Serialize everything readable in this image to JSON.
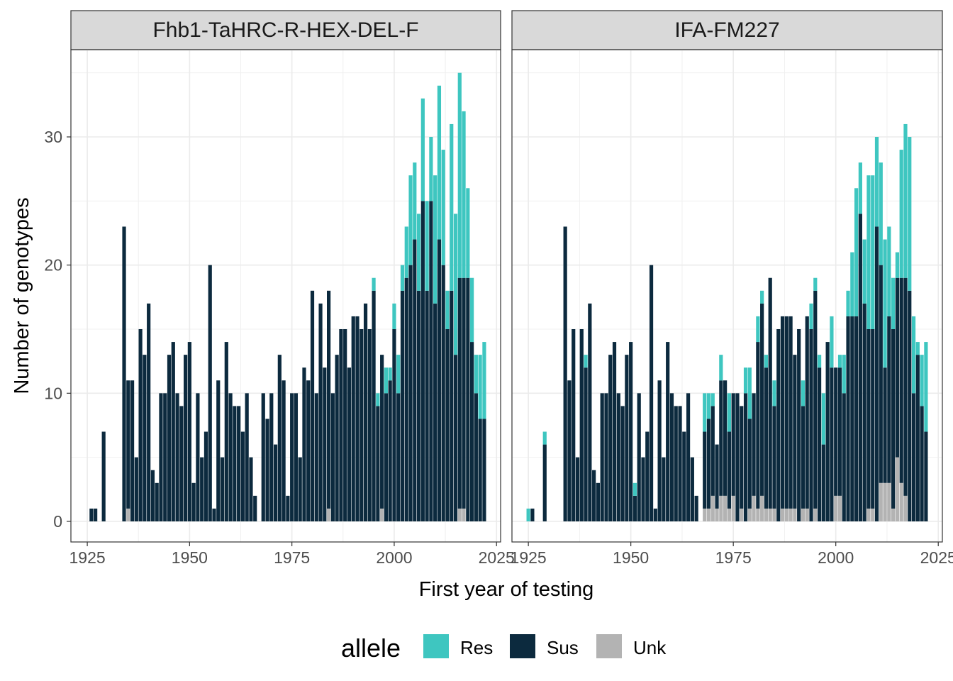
{
  "chart_data": {
    "type": "bar",
    "stacked": true,
    "xlabel": "First year of testing",
    "ylabel": "Number of genotypes",
    "xlim": [
      1921,
      2026
    ],
    "ylim": [
      0,
      36
    ],
    "x_ticks": [
      1925,
      1950,
      1975,
      2000,
      2025
    ],
    "y_ticks": [
      0,
      10,
      20,
      30
    ],
    "grid": true,
    "legend": {
      "title": "allele",
      "position": "bottom",
      "entries": [
        {
          "name": "Res",
          "color": "#3EC6C0"
        },
        {
          "name": "Sus",
          "color": "#0C2A3E"
        },
        {
          "name": "Unk",
          "color": "#B3B3B3"
        }
      ]
    },
    "panels": [
      {
        "title": "Fhb1-TaHRC-R-HEX-DEL-F",
        "data": [
          [
            1926,
            0,
            1,
            0
          ],
          [
            1927,
            0,
            1,
            0
          ],
          [
            1929,
            0,
            7,
            0
          ],
          [
            1934,
            0,
            23,
            0
          ],
          [
            1935,
            0,
            10,
            1
          ],
          [
            1936,
            0,
            11,
            0
          ],
          [
            1937,
            0,
            5,
            0
          ],
          [
            1938,
            0,
            15,
            0
          ],
          [
            1939,
            0,
            13,
            0
          ],
          [
            1940,
            0,
            17,
            0
          ],
          [
            1941,
            0,
            4,
            0
          ],
          [
            1942,
            0,
            3,
            0
          ],
          [
            1943,
            0,
            10,
            0
          ],
          [
            1944,
            0,
            10,
            0
          ],
          [
            1945,
            0,
            13,
            0
          ],
          [
            1946,
            0,
            14,
            0
          ],
          [
            1947,
            0,
            10,
            0
          ],
          [
            1948,
            0,
            9,
            0
          ],
          [
            1949,
            0,
            13,
            0
          ],
          [
            1950,
            0,
            14,
            0
          ],
          [
            1951,
            0,
            3,
            0
          ],
          [
            1952,
            0,
            10,
            0
          ],
          [
            1953,
            0,
            5,
            0
          ],
          [
            1954,
            0,
            7,
            0
          ],
          [
            1955,
            0,
            20,
            0
          ],
          [
            1956,
            0,
            1,
            0
          ],
          [
            1957,
            0,
            11,
            0
          ],
          [
            1958,
            0,
            5,
            0
          ],
          [
            1959,
            0,
            14,
            0
          ],
          [
            1960,
            0,
            10,
            0
          ],
          [
            1961,
            0,
            9,
            0
          ],
          [
            1962,
            0,
            9,
            0
          ],
          [
            1963,
            0,
            7,
            0
          ],
          [
            1964,
            0,
            10,
            0
          ],
          [
            1965,
            0,
            5,
            0
          ],
          [
            1966,
            0,
            2,
            0
          ],
          [
            1968,
            0,
            10,
            0
          ],
          [
            1969,
            0,
            8,
            0
          ],
          [
            1970,
            0,
            10,
            0
          ],
          [
            1971,
            0,
            6,
            0
          ],
          [
            1972,
            0,
            13,
            0
          ],
          [
            1973,
            0,
            11,
            0
          ],
          [
            1974,
            0,
            2,
            0
          ],
          [
            1975,
            0,
            10,
            0
          ],
          [
            1976,
            0,
            10,
            0
          ],
          [
            1977,
            0,
            5,
            0
          ],
          [
            1978,
            0,
            12,
            0
          ],
          [
            1979,
            0,
            11,
            0
          ],
          [
            1980,
            0,
            18,
            0
          ],
          [
            1981,
            0,
            10,
            0
          ],
          [
            1982,
            0,
            17,
            0
          ],
          [
            1983,
            0,
            12,
            0
          ],
          [
            1984,
            0,
            17,
            1
          ],
          [
            1985,
            0,
            10,
            0
          ],
          [
            1986,
            0,
            13,
            0
          ],
          [
            1987,
            0,
            15,
            0
          ],
          [
            1988,
            0,
            15,
            0
          ],
          [
            1989,
            0,
            12,
            0
          ],
          [
            1990,
            0,
            16,
            0
          ],
          [
            1991,
            0,
            16,
            0
          ],
          [
            1992,
            0,
            15,
            0
          ],
          [
            1993,
            0,
            17,
            0
          ],
          [
            1994,
            0,
            15,
            0
          ],
          [
            1995,
            1,
            18,
            0
          ],
          [
            1996,
            1,
            9,
            0
          ],
          [
            1997,
            0,
            12,
            1
          ],
          [
            1998,
            2,
            10,
            0
          ],
          [
            1999,
            1,
            11,
            0
          ],
          [
            2000,
            2,
            15,
            0
          ],
          [
            2001,
            3,
            10,
            0
          ],
          [
            2002,
            2,
            18,
            0
          ],
          [
            2003,
            4,
            19,
            0
          ],
          [
            2004,
            7,
            20,
            0
          ],
          [
            2005,
            6,
            22,
            0
          ],
          [
            2006,
            6,
            18,
            0
          ],
          [
            2007,
            8,
            25,
            0
          ],
          [
            2008,
            7,
            18,
            0
          ],
          [
            2009,
            5,
            25,
            0
          ],
          [
            2010,
            10,
            17,
            0
          ],
          [
            2011,
            12,
            22,
            0
          ],
          [
            2012,
            9,
            20,
            0
          ],
          [
            2013,
            3,
            15,
            0
          ],
          [
            2014,
            13,
            18,
            0
          ],
          [
            2015,
            11,
            13,
            0
          ],
          [
            2016,
            16,
            18,
            1
          ],
          [
            2017,
            13,
            18,
            1
          ],
          [
            2018,
            7,
            19,
            0
          ],
          [
            2019,
            5,
            14,
            0
          ],
          [
            2020,
            3,
            10,
            0
          ],
          [
            2021,
            5,
            8,
            0
          ],
          [
            2022,
            6,
            8,
            0
          ]
        ]
      },
      {
        "title": "IFA-FM227",
        "data": [
          [
            1925,
            1,
            0,
            0
          ],
          [
            1926,
            0,
            1,
            0
          ],
          [
            1929,
            1,
            6,
            0
          ],
          [
            1934,
            0,
            23,
            0
          ],
          [
            1935,
            0,
            11,
            0
          ],
          [
            1936,
            0,
            15,
            0
          ],
          [
            1937,
            0,
            5,
            0
          ],
          [
            1938,
            0,
            15,
            0
          ],
          [
            1939,
            1,
            12,
            0
          ],
          [
            1940,
            0,
            17,
            0
          ],
          [
            1941,
            0,
            4,
            0
          ],
          [
            1942,
            0,
            3,
            0
          ],
          [
            1943,
            0,
            10,
            0
          ],
          [
            1944,
            0,
            10,
            0
          ],
          [
            1945,
            0,
            13,
            0
          ],
          [
            1946,
            0,
            14,
            0
          ],
          [
            1947,
            0,
            10,
            0
          ],
          [
            1948,
            0,
            9,
            0
          ],
          [
            1949,
            0,
            13,
            0
          ],
          [
            1950,
            0,
            14,
            0
          ],
          [
            1951,
            1,
            2,
            0
          ],
          [
            1952,
            0,
            10,
            0
          ],
          [
            1953,
            0,
            5,
            0
          ],
          [
            1954,
            0,
            7,
            0
          ],
          [
            1955,
            0,
            20,
            0
          ],
          [
            1956,
            0,
            1,
            0
          ],
          [
            1957,
            0,
            11,
            0
          ],
          [
            1958,
            0,
            5,
            0
          ],
          [
            1959,
            0,
            14,
            0
          ],
          [
            1960,
            0,
            10,
            0
          ],
          [
            1961,
            0,
            9,
            0
          ],
          [
            1962,
            0,
            9,
            0
          ],
          [
            1963,
            0,
            7,
            0
          ],
          [
            1964,
            0,
            10,
            0
          ],
          [
            1965,
            0,
            5,
            0
          ],
          [
            1966,
            0,
            2,
            0
          ],
          [
            1968,
            3,
            6,
            1
          ],
          [
            1969,
            2,
            7,
            1
          ],
          [
            1970,
            1,
            7,
            2
          ],
          [
            1971,
            0,
            5,
            1
          ],
          [
            1972,
            2,
            9,
            2
          ],
          [
            1973,
            0,
            9,
            2
          ],
          [
            1974,
            3,
            6,
            1
          ],
          [
            1975,
            0,
            8,
            2
          ],
          [
            1976,
            0,
            10,
            0
          ],
          [
            1977,
            0,
            8,
            1
          ],
          [
            1978,
            2,
            10,
            0
          ],
          [
            1979,
            4,
            7,
            1
          ],
          [
            1980,
            0,
            8,
            2
          ],
          [
            1981,
            2,
            13,
            1
          ],
          [
            1982,
            1,
            15,
            2
          ],
          [
            1983,
            1,
            11,
            1
          ],
          [
            1984,
            0,
            18,
            1
          ],
          [
            1985,
            2,
            8,
            1
          ],
          [
            1986,
            0,
            15,
            0
          ],
          [
            1987,
            0,
            15,
            1
          ],
          [
            1988,
            0,
            15,
            1
          ],
          [
            1989,
            0,
            15,
            1
          ],
          [
            1990,
            0,
            12,
            1
          ],
          [
            1991,
            0,
            15,
            0
          ],
          [
            1992,
            2,
            8,
            1
          ],
          [
            1993,
            0,
            15,
            1
          ],
          [
            1994,
            2,
            15,
            0
          ],
          [
            1995,
            1,
            17,
            1
          ],
          [
            1996,
            1,
            12,
            0
          ],
          [
            1997,
            4,
            6,
            0
          ],
          [
            1998,
            0,
            14,
            0
          ],
          [
            1999,
            4,
            12,
            0
          ],
          [
            2000,
            0,
            10,
            2
          ],
          [
            2001,
            1,
            10,
            2
          ],
          [
            2002,
            3,
            10,
            0
          ],
          [
            2003,
            2,
            16,
            0
          ],
          [
            2004,
            5,
            16,
            0
          ],
          [
            2005,
            10,
            16,
            0
          ],
          [
            2006,
            4,
            24,
            0
          ],
          [
            2007,
            5,
            17,
            0
          ],
          [
            2008,
            12,
            14,
            1
          ],
          [
            2009,
            12,
            14,
            1
          ],
          [
            2010,
            7,
            23,
            0
          ],
          [
            2011,
            8,
            17,
            3
          ],
          [
            2012,
            10,
            9,
            3
          ],
          [
            2013,
            7,
            13,
            3
          ],
          [
            2014,
            4,
            14,
            1
          ],
          [
            2015,
            2,
            14,
            5
          ],
          [
            2016,
            10,
            16,
            3
          ],
          [
            2017,
            12,
            17,
            2
          ],
          [
            2018,
            12,
            18,
            0
          ],
          [
            2019,
            6,
            10,
            0
          ],
          [
            2020,
            1,
            13,
            0
          ],
          [
            2021,
            4,
            9,
            0
          ],
          [
            2022,
            7,
            7,
            0
          ]
        ]
      }
    ]
  }
}
